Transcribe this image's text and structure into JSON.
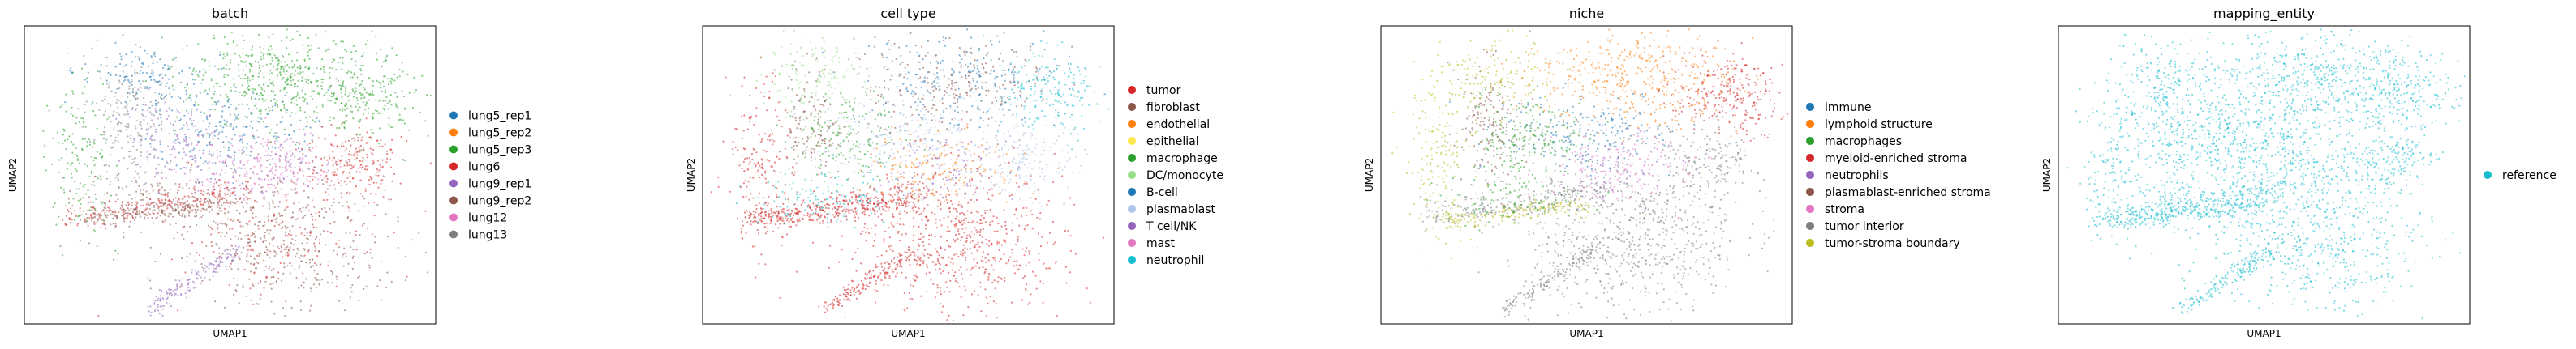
{
  "chart_data": [
    {
      "type": "scatter",
      "title": "batch",
      "xlabel": "UMAP1",
      "ylabel": "UMAP2",
      "grid": false,
      "legend_placement": "right",
      "series": [
        {
          "name": "lung5_rep1",
          "color": "#1f77b4"
        },
        {
          "name": "lung5_rep2",
          "color": "#ff7f0e"
        },
        {
          "name": "lung5_rep3",
          "color": "#2ca02c"
        },
        {
          "name": "lung6",
          "color": "#d62728"
        },
        {
          "name": "lung9_rep1",
          "color": "#9467bd"
        },
        {
          "name": "lung9_rep2",
          "color": "#8c564b"
        },
        {
          "name": "lung12",
          "color": "#e377c2"
        },
        {
          "name": "lung13",
          "color": "#7f7f7f"
        }
      ]
    },
    {
      "type": "scatter",
      "title": "cell type",
      "xlabel": "UMAP1",
      "ylabel": "UMAP2",
      "grid": false,
      "legend_placement": "right",
      "series": [
        {
          "name": "tumor",
          "color": "#d62728"
        },
        {
          "name": "fibroblast",
          "color": "#8c564b"
        },
        {
          "name": "endothelial",
          "color": "#ff7f0e"
        },
        {
          "name": "epithelial",
          "color": "#ffe84d"
        },
        {
          "name": "macrophage",
          "color": "#2ca02c"
        },
        {
          "name": "DC/monocyte",
          "color": "#98df8a"
        },
        {
          "name": "B-cell",
          "color": "#1f77b4"
        },
        {
          "name": "plasmablast",
          "color": "#aec7e8"
        },
        {
          "name": "T cell/NK",
          "color": "#9467bd"
        },
        {
          "name": "mast",
          "color": "#e377c2"
        },
        {
          "name": "neutrophil",
          "color": "#17becf"
        }
      ]
    },
    {
      "type": "scatter",
      "title": "niche",
      "xlabel": "UMAP1",
      "ylabel": "UMAP2",
      "grid": false,
      "legend_placement": "right",
      "series": [
        {
          "name": "immune",
          "color": "#1f77b4"
        },
        {
          "name": "lymphoid structure",
          "color": "#ff7f0e"
        },
        {
          "name": "macrophages",
          "color": "#2ca02c"
        },
        {
          "name": "myeloid-enriched stroma",
          "color": "#d62728"
        },
        {
          "name": "neutrophils",
          "color": "#9467bd"
        },
        {
          "name": "plasmablast-enriched stroma",
          "color": "#8c564b"
        },
        {
          "name": "stroma",
          "color": "#e377c2"
        },
        {
          "name": "tumor interior",
          "color": "#7f7f7f"
        },
        {
          "name": "tumor-stroma boundary",
          "color": "#bcbd22"
        }
      ]
    },
    {
      "type": "scatter",
      "title": "mapping_entity",
      "xlabel": "UMAP1",
      "ylabel": "UMAP2",
      "grid": false,
      "legend_placement": "right",
      "series": [
        {
          "name": "reference",
          "color": "#17becf"
        }
      ]
    }
  ]
}
